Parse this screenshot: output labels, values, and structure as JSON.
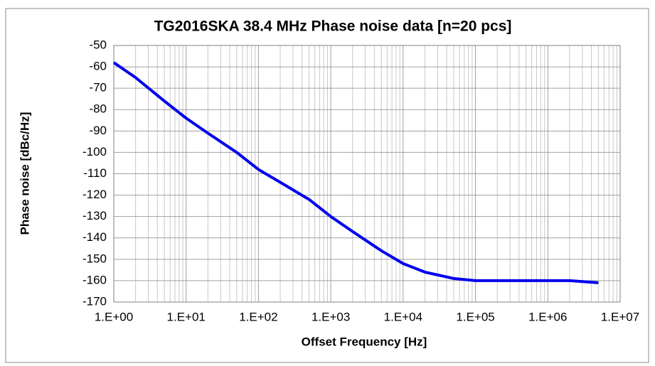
{
  "chart_data": {
    "type": "line",
    "title": "TG2016SKA 38.4 MHz Phase noise data [n=20 pcs]",
    "x_label": "Offset Frequency [Hz]",
    "y_label": "Phase noise [dBc/Hz]",
    "x_scale": "log",
    "grid": true,
    "x": [
      1,
      2,
      5,
      10,
      20,
      50,
      100,
      200,
      500,
      1000,
      2000,
      5000,
      10000,
      20000,
      50000,
      100000,
      200000,
      500000,
      1000000,
      2000000,
      5000000
    ],
    "series": [
      {
        "name": "TG2016SKA",
        "color": "#0000ee",
        "values": [
          -58,
          -65,
          -76,
          -84,
          -91,
          -100,
          -108,
          -114,
          -122,
          -130,
          -137,
          -146,
          -152,
          -156,
          -159,
          -160,
          -160,
          -160,
          -160,
          -160,
          -161
        ]
      }
    ],
    "xlim": [
      1,
      10000000
    ],
    "xticks": [
      {
        "value": 1,
        "label": "1.E+00"
      },
      {
        "value": 10,
        "label": "1.E+01"
      },
      {
        "value": 100,
        "label": "1.E+02"
      },
      {
        "value": 1000,
        "label": "1.E+03"
      },
      {
        "value": 10000,
        "label": "1.E+04"
      },
      {
        "value": 100000,
        "label": "1.E+05"
      },
      {
        "value": 1000000,
        "label": "1.E+06"
      },
      {
        "value": 10000000,
        "label": "1.E+07"
      }
    ],
    "ylim": [
      -170,
      -50
    ],
    "yticks": [
      -50,
      -60,
      -70,
      -80,
      -90,
      -100,
      -110,
      -120,
      -130,
      -140,
      -150,
      -160,
      -170
    ]
  }
}
